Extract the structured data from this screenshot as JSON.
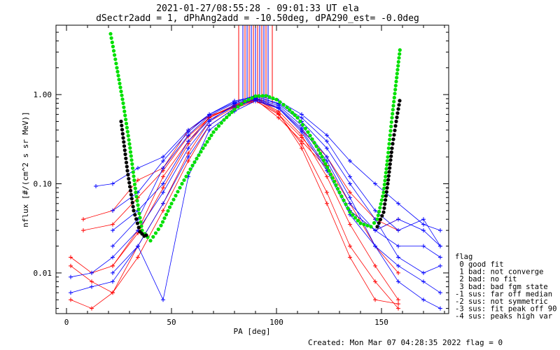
{
  "chart_data": {
    "type": "line",
    "title": "2021-01-27/08:55:28 - 09:01:33 UT ela",
    "subtitle": "dSectr2add = 1, dPhAng2add = -10.50deg, dPA290_est=  -0.0deg",
    "xlabel": "PA [deg]",
    "ylabel": "nflux [#/(cm^2 s sr MeV)]",
    "xlim": [
      -5,
      182
    ],
    "ylim": [
      0.0035,
      6
    ],
    "yscale": "log",
    "x_ticks": [
      "0",
      "50",
      "100",
      "150"
    ],
    "y_ticks": [
      "0.01",
      "0.10",
      "1.00"
    ],
    "series": [
      {
        "color": "#ff0000",
        "marker": "plus",
        "lines": [
          {
            "x": [
              22,
              34,
              46,
              58,
              68,
              80,
              90,
              101,
              112,
              124,
              135,
              147,
              158
            ],
            "y": [
              0.012,
              0.028,
              0.09,
              0.28,
              0.55,
              0.75,
              0.9,
              0.65,
              0.35,
              0.12,
              0.035,
              0.012,
              0.005
            ]
          },
          {
            "x": [
              2,
              12,
              22,
              34,
              46,
              58,
              68,
              80,
              90,
              101,
              112,
              124,
              135,
              147,
              158
            ],
            "y": [
              0.012,
              0.008,
              0.006,
              0.015,
              0.05,
              0.18,
              0.45,
              0.7,
              0.85,
              0.6,
              0.28,
              0.08,
              0.02,
              0.008,
              0.004
            ]
          },
          {
            "x": [
              8,
              22,
              34,
              46,
              58,
              68,
              80,
              90,
              101,
              112,
              124,
              135,
              147,
              158
            ],
            "y": [
              0.04,
              0.05,
              0.11,
              0.15,
              0.4,
              0.58,
              0.72,
              0.88,
              0.55,
              0.3,
              0.15,
              0.05,
              0.03,
              0.04
            ]
          },
          {
            "x": [
              2,
              12,
              22,
              34,
              46,
              58,
              68,
              80,
              90,
              101,
              112,
              124,
              135,
              147,
              158
            ],
            "y": [
              0.005,
              0.004,
              0.006,
              0.02,
              0.06,
              0.22,
              0.5,
              0.72,
              0.9,
              0.62,
              0.25,
              0.06,
              0.015,
              0.005,
              0.0045
            ]
          },
          {
            "x": [
              2,
              12,
              22,
              34,
              46,
              58,
              68,
              80,
              90,
              101,
              112,
              124,
              135,
              147,
              158
            ],
            "y": [
              0.015,
              0.01,
              0.012,
              0.03,
              0.12,
              0.3,
              0.56,
              0.76,
              0.92,
              0.7,
              0.4,
              0.2,
              0.08,
              0.04,
              0.03
            ]
          },
          {
            "x": [
              8,
              22,
              34,
              46,
              58,
              68,
              80,
              90,
              101,
              112,
              124,
              135,
              147,
              158
            ],
            "y": [
              0.03,
              0.035,
              0.07,
              0.14,
              0.34,
              0.55,
              0.74,
              0.86,
              0.6,
              0.33,
              0.16,
              0.06,
              0.02,
              0.01
            ]
          }
        ]
      },
      {
        "color": "#0000ff",
        "marker": "plus",
        "lines": [
          {
            "x": [
              14,
              22,
              34,
              46,
              58,
              68,
              80,
              90,
              101,
              112,
              124,
              135,
              147,
              158,
              170,
              178
            ],
            "y": [
              0.094,
              0.1,
              0.15,
              0.2,
              0.4,
              0.6,
              0.85,
              0.95,
              0.8,
              0.55,
              0.3,
              0.12,
              0.05,
              0.03,
              0.04,
              0.02
            ]
          },
          {
            "x": [
              2,
              12,
              22,
              34,
              46,
              58,
              68,
              80,
              90,
              101,
              112,
              124,
              135,
              147,
              158,
              170,
              178
            ],
            "y": [
              0.009,
              0.01,
              0.015,
              0.03,
              0.08,
              0.25,
              0.5,
              0.78,
              0.92,
              0.75,
              0.45,
              0.2,
              0.07,
              0.02,
              0.008,
              0.005,
              0.004
            ]
          },
          {
            "x": [
              22,
              34,
              46,
              58,
              68,
              80,
              90,
              101,
              112,
              124,
              135,
              147,
              158,
              170,
              178
            ],
            "y": [
              0.03,
              0.05,
              0.1,
              0.3,
              0.52,
              0.74,
              0.88,
              0.7,
              0.4,
              0.15,
              0.05,
              0.03,
              0.02,
              0.02,
              0.015
            ]
          },
          {
            "x": [
              2,
              12,
              22,
              34,
              46,
              58,
              68,
              80,
              90,
              101,
              112,
              124,
              135,
              147,
              158,
              170,
              178
            ],
            "y": [
              0.006,
              0.007,
              0.008,
              0.02,
              0.06,
              0.2,
              0.45,
              0.7,
              0.9,
              0.72,
              0.42,
              0.18,
              0.06,
              0.03,
              0.04,
              0.03,
              0.02
            ]
          },
          {
            "x": [
              22,
              34,
              46,
              58,
              68,
              80,
              90,
              101,
              112,
              124,
              135,
              147,
              158,
              170,
              178
            ],
            "y": [
              0.02,
              0.04,
              0.15,
              0.35,
              0.58,
              0.8,
              0.96,
              0.78,
              0.5,
              0.25,
              0.1,
              0.04,
              0.015,
              0.01,
              0.012
            ]
          },
          {
            "x": [
              22,
              34,
              46,
              58,
              68,
              80,
              90,
              101,
              112,
              124,
              135,
              147,
              158,
              170,
              178
            ],
            "y": [
              0.01,
              0.02,
              0.005,
              0.12,
              0.4,
              0.65,
              0.85,
              0.7,
              0.38,
              0.14,
              0.045,
              0.02,
              0.012,
              0.008,
              0.006
            ]
          },
          {
            "x": [
              22,
              34,
              46,
              58,
              68,
              80,
              90,
              101,
              112,
              124,
              135,
              147,
              158,
              170,
              178
            ],
            "y": [
              0.05,
              0.08,
              0.18,
              0.38,
              0.6,
              0.82,
              0.98,
              0.85,
              0.6,
              0.35,
              0.18,
              0.1,
              0.06,
              0.035,
              0.03
            ]
          }
        ]
      },
      {
        "name": "fit (green)",
        "color": "#00e000",
        "x": [
          21,
          24,
          27,
          30,
          33,
          36,
          40,
          45,
          50,
          55,
          60,
          65,
          70,
          75,
          80,
          85,
          90,
          95,
          100,
          105,
          110,
          115,
          120,
          125,
          130,
          135,
          140,
          145,
          148,
          151,
          153,
          155,
          157,
          159
        ],
        "y": [
          4.8,
          2.0,
          0.8,
          0.28,
          0.08,
          0.03,
          0.023,
          0.034,
          0.06,
          0.1,
          0.16,
          0.25,
          0.38,
          0.52,
          0.68,
          0.84,
          0.96,
          0.97,
          0.88,
          0.72,
          0.55,
          0.38,
          0.24,
          0.14,
          0.08,
          0.048,
          0.036,
          0.033,
          0.04,
          0.08,
          0.2,
          0.55,
          1.4,
          3.5
        ]
      },
      {
        "name": "fit (black)",
        "color": "#000000",
        "x": [
          26,
          29,
          32,
          35,
          37,
          39,
          148,
          151,
          153,
          155,
          157,
          159
        ],
        "y": [
          0.5,
          0.14,
          0.05,
          0.029,
          0.026,
          0.027,
          0.033,
          0.048,
          0.1,
          0.25,
          0.5,
          0.95
        ]
      }
    ],
    "legend": {
      "title": "flag",
      "placement": "right-bottom",
      "entries": [
        " 0 good fit",
        " 1 bad: not converge",
        " 2 bad: no fit",
        " 3 bad: bad fgm state",
        "-1 sus: far off median",
        "-2 sus: not symmetric",
        "-3 sus: fit peak off 90",
        "-4 sus: peaks high var"
      ]
    },
    "footer": "Created: Mon Mar 07 04:28:35 2022   flag = 0"
  }
}
